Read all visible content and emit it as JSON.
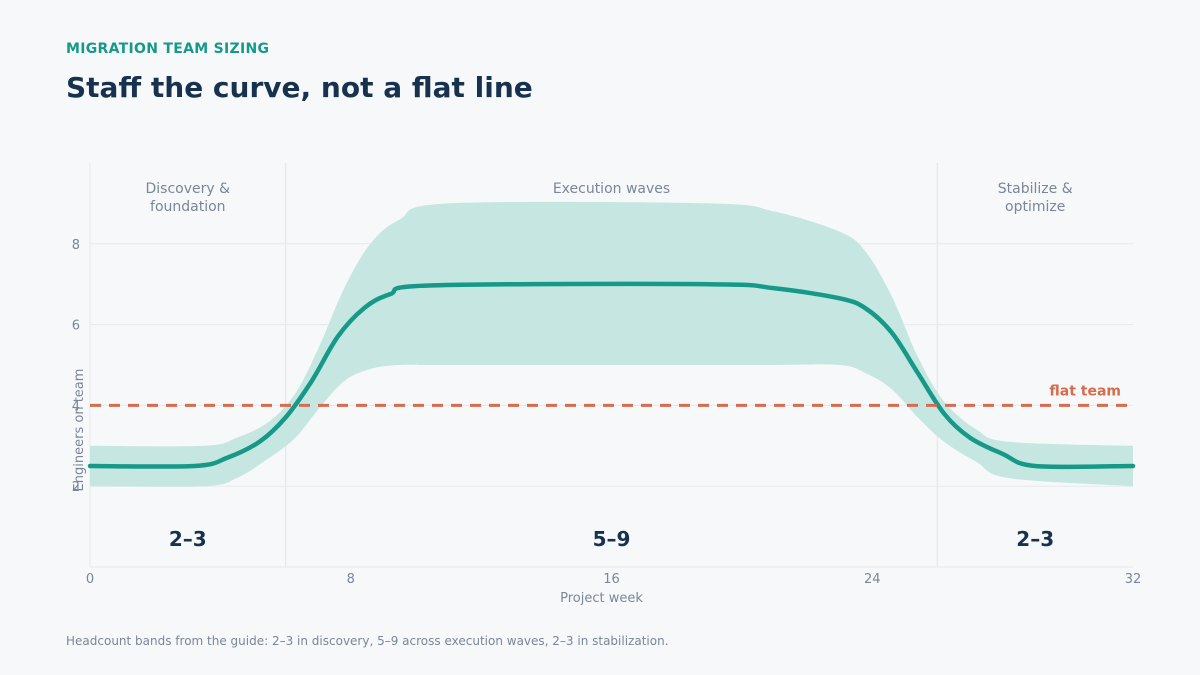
{
  "header": {
    "eyebrow": "MIGRATION TEAM SIZING",
    "title": "Staff the curve, not a flat line"
  },
  "footnote": "Headcount bands from the guide: 2–3 in discovery, 5–9 across execution waves, 2–3 in stabilization.",
  "colors": {
    "accent": "#17998a",
    "band": "#c6e7e1",
    "flat_line": "#d96b4d",
    "title": "#17324e",
    "muted": "#7a8699",
    "grid": "#e6e9ee"
  },
  "chart_data": {
    "type": "line",
    "xlabel": "Project week",
    "ylabel": "Engineers on team",
    "xlim": [
      0,
      32
    ],
    "ylim": [
      0,
      10
    ],
    "x_ticks": [
      0,
      8,
      16,
      24,
      32
    ],
    "y_ticks": [
      2,
      4,
      6,
      8
    ],
    "grid": true,
    "series": [
      {
        "kind": "band",
        "x": [
          0,
          3.5,
          4.5,
          5.5,
          6.3,
          7,
          7.8,
          8.6,
          9.5,
          11,
          19,
          21,
          23,
          23.8,
          24.6,
          25.4,
          26.2,
          27.2,
          28.2,
          32
        ],
        "upper": [
          3,
          3,
          3.2,
          3.6,
          4.3,
          5.4,
          6.9,
          8,
          8.6,
          9,
          9,
          8.8,
          8.3,
          7.8,
          6.7,
          5.2,
          4.1,
          3.4,
          3.1,
          3
        ],
        "lower": [
          2,
          2,
          2.2,
          2.7,
          3.2,
          3.9,
          4.6,
          4.9,
          5,
          5,
          5,
          5,
          5,
          4.8,
          4.4,
          3.7,
          3.1,
          2.6,
          2.2,
          2
        ]
      },
      {
        "kind": "line",
        "x": [
          0,
          3.2,
          4.2,
          5.2,
          6,
          6.8,
          7.6,
          8.4,
          9.2,
          10.5,
          19,
          21,
          23,
          23.8,
          24.6,
          25.4,
          26.2,
          27,
          28,
          29,
          32
        ],
        "y": [
          2.5,
          2.5,
          2.7,
          3.1,
          3.7,
          4.6,
          5.7,
          6.4,
          6.75,
          6.97,
          7,
          6.9,
          6.65,
          6.4,
          5.8,
          4.8,
          3.8,
          3.2,
          2.8,
          2.5,
          2.5
        ]
      },
      {
        "kind": "reference",
        "name": "flat team",
        "y": 4
      }
    ],
    "phases": [
      {
        "label_line1": "Discovery &",
        "label_line2": "foundation",
        "start": 0,
        "end": 6,
        "range": "2–3"
      },
      {
        "label_line1": "Execution waves",
        "label_line2": "",
        "start": 6,
        "end": 26,
        "range": "5–9"
      },
      {
        "label_line1": "Stabilize &",
        "label_line2": "optimize",
        "start": 26,
        "end": 32,
        "range": "2–3"
      }
    ],
    "phase_dividers": [
      6,
      26
    ]
  }
}
